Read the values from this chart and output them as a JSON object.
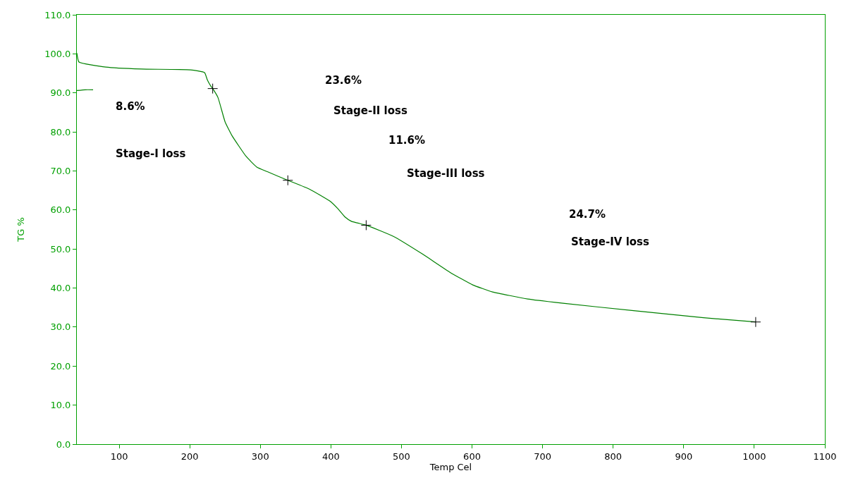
{
  "chart_data": {
    "type": "line",
    "xlabel": "Temp Cel",
    "ylabel": "TG %",
    "series": [
      {
        "color": "#008000",
        "x": [
          40,
          43,
          81,
          131,
          201,
          221,
          225,
          230,
          232.5,
          240,
          250,
          260,
          280,
          295,
          310,
          339,
          370,
          400,
          410,
          420,
          429,
          450,
          489,
          529,
          569,
          601,
          629,
          679,
          729,
          829,
          928,
          1002
        ],
        "values": [
          100.2,
          97.9,
          96.6,
          96.1,
          95.9,
          95.2,
          93.3,
          91.7,
          91.1,
          88.8,
          82.6,
          79.0,
          73.7,
          71.0,
          69.8,
          67.6,
          65.3,
          62.1,
          60.3,
          58.2,
          57.1,
          56.1,
          53.2,
          48.8,
          44.0,
          40.8,
          39.0,
          37.2,
          36.1,
          34.2,
          32.4,
          31.3
        ]
      },
      {
        "color": "#008000",
        "x": [
          40,
          52,
          63
        ],
        "values": [
          90.6,
          90.8,
          90.8
        ]
      },
      {
        "type": "scatter",
        "color": "#000000",
        "marker": "cross",
        "x": [
          232.5,
          339,
          450,
          1002
        ],
        "values": [
          91.1,
          67.6,
          56.1,
          31.3
        ]
      }
    ],
    "xlim": [
      40,
      1100
    ],
    "xticks": [
      100,
      200,
      300,
      400,
      500,
      600,
      700,
      800,
      900,
      1000,
      1100
    ],
    "ylim": [
      0,
      110
    ],
    "yticks": [
      {
        "value": 0,
        "label": "0.0"
      },
      {
        "value": 10,
        "label": "10.0"
      },
      {
        "value": 20,
        "label": "20.0"
      },
      {
        "value": 30,
        "label": "30.0"
      },
      {
        "value": 40,
        "label": "40.0"
      },
      {
        "value": 50,
        "label": "50.0"
      },
      {
        "value": 60,
        "label": "60.0"
      },
      {
        "value": 70,
        "label": "70.0"
      },
      {
        "value": 80,
        "label": "80.0"
      },
      {
        "value": 90,
        "label": "90.0"
      },
      {
        "value": 100,
        "label": "100.0"
      },
      {
        "value": 110,
        "label": "110.0"
      }
    ],
    "annotations": [
      "8.6%",
      "Stage-I loss",
      "23.6%",
      "Stage-II loss",
      "11.6%",
      "Stage-III loss",
      "24.7%",
      "Stage-IV loss"
    ]
  }
}
